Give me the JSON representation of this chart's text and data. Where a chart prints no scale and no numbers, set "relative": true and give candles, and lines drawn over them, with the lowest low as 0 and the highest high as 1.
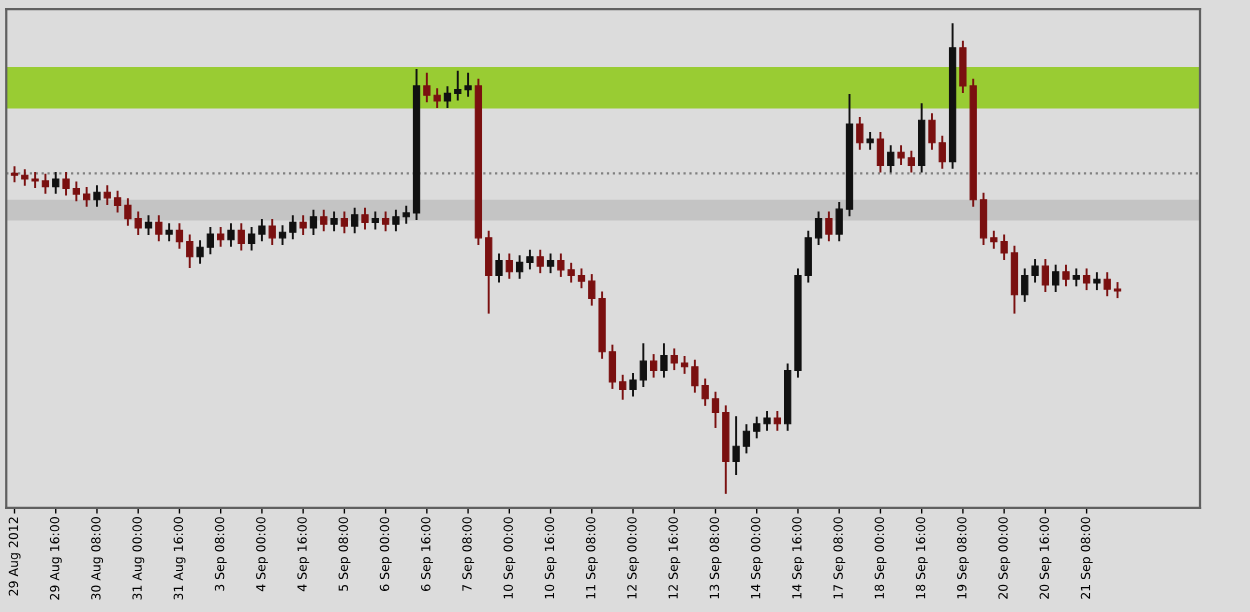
{
  "chart_data": {
    "type": "candlestick",
    "relative": true,
    "categories": [
      "29 Aug 2012",
      null,
      null,
      null,
      "29 Aug 16:00",
      null,
      null,
      null,
      "30 Aug 08:00",
      null,
      null,
      null,
      "31 Aug 00:00",
      null,
      null,
      null,
      "31 Aug 16:00",
      null,
      null,
      null,
      "3 Sep 08:00",
      null,
      null,
      null,
      "4 Sep 00:00",
      null,
      null,
      null,
      "4 Sep 16:00",
      null,
      null,
      null,
      "5 Sep 08:00",
      null,
      null,
      null,
      "6 Sep 00:00",
      null,
      null,
      null,
      "6 Sep 16:00",
      null,
      null,
      null,
      "7 Sep 08:00",
      null,
      null,
      null,
      "10 Sep 00:00",
      null,
      null,
      null,
      "10 Sep 16:00",
      null,
      null,
      null,
      "11 Sep 08:00",
      null,
      null,
      null,
      "12 Sep 00:00",
      null,
      null,
      null,
      "12 Sep 16:00",
      null,
      null,
      null,
      "13 Sep 08:00",
      null,
      null,
      null,
      "14 Sep 00:00",
      null,
      null,
      null,
      "14 Sep 16:00",
      null,
      null,
      null,
      "17 Sep 08:00",
      null,
      null,
      null,
      "18 Sep 00:00",
      null,
      null,
      null,
      "18 Sep 16:00",
      null,
      null,
      null,
      "19 Sep 08:00",
      null,
      null,
      null,
      "20 Sep 00:00",
      null,
      null,
      null,
      "20 Sep 16:00",
      null,
      null,
      null,
      "21 Sep 08:00",
      null,
      null,
      null
    ],
    "ohlc": [
      [
        0.681,
        0.696,
        0.662,
        0.677
      ],
      [
        0.677,
        0.69,
        0.655,
        0.669
      ],
      [
        0.669,
        0.684,
        0.65,
        0.665
      ],
      [
        0.665,
        0.68,
        0.638,
        0.653
      ],
      [
        0.653,
        0.684,
        0.638,
        0.669
      ],
      [
        0.669,
        0.684,
        0.634,
        0.649
      ],
      [
        0.649,
        0.664,
        0.622,
        0.637
      ],
      [
        0.637,
        0.652,
        0.61,
        0.625
      ],
      [
        0.625,
        0.656,
        0.61,
        0.641
      ],
      [
        0.641,
        0.656,
        0.614,
        0.629
      ],
      [
        0.629,
        0.644,
        0.598,
        0.613
      ],
      [
        0.613,
        0.628,
        0.57,
        0.585
      ],
      [
        0.585,
        0.6,
        0.55,
        0.565
      ],
      [
        0.565,
        0.592,
        0.55,
        0.577
      ],
      [
        0.577,
        0.592,
        0.537,
        0.552
      ],
      [
        0.552,
        0.575,
        0.537,
        0.56
      ],
      [
        0.56,
        0.575,
        0.521,
        0.536
      ],
      [
        0.536,
        0.551,
        0.48,
        0.504
      ],
      [
        0.504,
        0.539,
        0.489,
        0.524
      ],
      [
        0.524,
        0.567,
        0.509,
        0.552
      ],
      [
        0.552,
        0.567,
        0.525,
        0.54
      ],
      [
        0.54,
        0.575,
        0.525,
        0.56
      ],
      [
        0.56,
        0.575,
        0.517,
        0.532
      ],
      [
        0.532,
        0.567,
        0.517,
        0.552
      ],
      [
        0.552,
        0.584,
        0.537,
        0.569
      ],
      [
        0.569,
        0.584,
        0.529,
        0.544
      ],
      [
        0.544,
        0.571,
        0.529,
        0.556
      ],
      [
        0.556,
        0.592,
        0.541,
        0.577
      ],
      [
        0.577,
        0.592,
        0.55,
        0.565
      ],
      [
        0.565,
        0.604,
        0.55,
        0.589
      ],
      [
        0.589,
        0.604,
        0.558,
        0.573
      ],
      [
        0.573,
        0.6,
        0.558,
        0.585
      ],
      [
        0.585,
        0.6,
        0.554,
        0.569
      ],
      [
        0.569,
        0.608,
        0.554,
        0.593
      ],
      [
        0.593,
        0.608,
        0.562,
        0.577
      ],
      [
        0.577,
        0.6,
        0.562,
        0.585
      ],
      [
        0.585,
        0.6,
        0.558,
        0.573
      ],
      [
        0.573,
        0.604,
        0.558,
        0.589
      ],
      [
        0.589,
        0.612,
        0.574,
        0.597
      ],
      [
        0.597,
        0.903,
        0.582,
        0.867
      ],
      [
        0.867,
        0.895,
        0.832,
        0.847
      ],
      [
        0.847,
        0.862,
        0.82,
        0.835
      ],
      [
        0.835,
        0.866,
        0.82,
        0.851
      ],
      [
        0.851,
        0.899,
        0.836,
        0.859
      ],
      [
        0.859,
        0.895,
        0.844,
        0.867
      ],
      [
        0.867,
        0.882,
        0.529,
        0.544
      ],
      [
        0.544,
        0.559,
        0.383,
        0.464
      ],
      [
        0.464,
        0.511,
        0.449,
        0.496
      ],
      [
        0.496,
        0.511,
        0.457,
        0.472
      ],
      [
        0.472,
        0.507,
        0.457,
        0.492
      ],
      [
        0.492,
        0.519,
        0.477,
        0.504
      ],
      [
        0.504,
        0.519,
        0.469,
        0.484
      ],
      [
        0.484,
        0.511,
        0.469,
        0.496
      ],
      [
        0.496,
        0.511,
        0.461,
        0.476
      ],
      [
        0.476,
        0.491,
        0.449,
        0.464
      ],
      [
        0.464,
        0.479,
        0.437,
        0.452
      ],
      [
        0.452,
        0.467,
        0.4,
        0.415
      ],
      [
        0.415,
        0.43,
        0.287,
        0.302
      ],
      [
        0.302,
        0.317,
        0.223,
        0.238
      ],
      [
        0.238,
        0.253,
        0.2,
        0.222
      ],
      [
        0.222,
        0.257,
        0.207,
        0.242
      ],
      [
        0.242,
        0.32,
        0.227,
        0.282
      ],
      [
        0.282,
        0.297,
        0.247,
        0.262
      ],
      [
        0.262,
        0.32,
        0.247,
        0.294
      ],
      [
        0.294,
        0.309,
        0.263,
        0.278
      ],
      [
        0.278,
        0.293,
        0.255,
        0.27
      ],
      [
        0.27,
        0.285,
        0.215,
        0.23
      ],
      [
        0.23,
        0.245,
        0.187,
        0.202
      ],
      [
        0.202,
        0.217,
        0.14,
        0.173
      ],
      [
        0.173,
        0.188,
        0.0,
        0.069
      ],
      [
        0.069,
        0.165,
        0.04,
        0.101
      ],
      [
        0.101,
        0.148,
        0.086,
        0.133
      ],
      [
        0.133,
        0.164,
        0.118,
        0.149
      ],
      [
        0.149,
        0.176,
        0.134,
        0.161
      ],
      [
        0.161,
        0.176,
        0.134,
        0.149
      ],
      [
        0.149,
        0.277,
        0.134,
        0.262
      ],
      [
        0.262,
        0.479,
        0.247,
        0.464
      ],
      [
        0.464,
        0.559,
        0.449,
        0.544
      ],
      [
        0.544,
        0.6,
        0.529,
        0.585
      ],
      [
        0.585,
        0.6,
        0.537,
        0.552
      ],
      [
        0.552,
        0.62,
        0.537,
        0.605
      ],
      [
        0.605,
        0.85,
        0.59,
        0.786
      ],
      [
        0.786,
        0.801,
        0.731,
        0.746
      ],
      [
        0.746,
        0.769,
        0.731,
        0.754
      ],
      [
        0.754,
        0.769,
        0.683,
        0.698
      ],
      [
        0.698,
        0.741,
        0.683,
        0.726
      ],
      [
        0.726,
        0.741,
        0.699,
        0.714
      ],
      [
        0.714,
        0.729,
        0.683,
        0.698
      ],
      [
        0.698,
        0.83,
        0.683,
        0.794
      ],
      [
        0.794,
        0.809,
        0.731,
        0.746
      ],
      [
        0.746,
        0.761,
        0.691,
        0.706
      ],
      [
        0.706,
        1.0,
        0.691,
        0.948
      ],
      [
        0.948,
        0.963,
        0.852,
        0.867
      ],
      [
        0.867,
        0.882,
        0.61,
        0.625
      ],
      [
        0.625,
        0.64,
        0.529,
        0.544
      ],
      [
        0.544,
        0.559,
        0.521,
        0.536
      ],
      [
        0.536,
        0.551,
        0.497,
        0.512
      ],
      [
        0.512,
        0.527,
        0.383,
        0.423
      ],
      [
        0.423,
        0.479,
        0.408,
        0.464
      ],
      [
        0.464,
        0.499,
        0.449,
        0.484
      ],
      [
        0.484,
        0.499,
        0.429,
        0.444
      ],
      [
        0.444,
        0.487,
        0.429,
        0.472
      ],
      [
        0.472,
        0.487,
        0.441,
        0.456
      ],
      [
        0.456,
        0.479,
        0.441,
        0.464
      ],
      [
        0.464,
        0.479,
        0.433,
        0.448
      ],
      [
        0.448,
        0.471,
        0.433,
        0.456
      ],
      [
        0.456,
        0.471,
        0.42,
        0.435
      ],
      [
        0.435,
        0.45,
        0.416,
        0.431
      ]
    ],
    "bands": [
      {
        "axis": "y",
        "from": 0.819,
        "to": 0.907,
        "color": "#99cc33"
      },
      {
        "axis": "y",
        "from": 0.581,
        "to": 0.625,
        "color": "#c4c4c4"
      }
    ],
    "ref_lines": [
      {
        "axis": "y",
        "value": 0.681,
        "color": "#808080",
        "line_style": "dotted"
      }
    ]
  }
}
